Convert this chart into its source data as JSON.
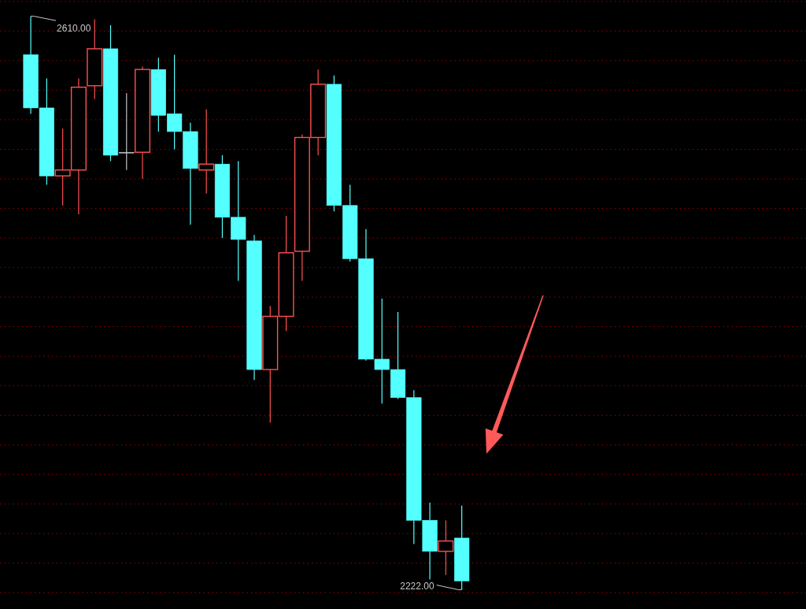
{
  "chart_data": {
    "type": "candlestick",
    "categories": [
      null,
      null,
      null,
      null,
      null,
      null,
      null,
      null,
      null,
      null,
      null,
      null,
      null,
      null,
      null,
      null,
      null,
      null,
      null,
      null,
      null,
      null,
      null,
      null,
      null,
      null,
      null,
      null
    ],
    "ohlc": [
      [
        2584,
        2610,
        2544,
        2548
      ],
      [
        2548,
        2568,
        2496,
        2502
      ],
      [
        2502,
        2534,
        2482,
        2506
      ],
      [
        2506,
        2568,
        2476,
        2562
      ],
      [
        2563,
        2608,
        2554,
        2588
      ],
      [
        2588,
        2604,
        2512,
        2516
      ],
      [
        2518,
        2558,
        2506,
        2518
      ],
      [
        2518,
        2576,
        2500,
        2574
      ],
      [
        2574,
        2582,
        2532,
        2543
      ],
      [
        2544,
        2584,
        2520,
        2532
      ],
      [
        2532,
        2538,
        2469,
        2507
      ],
      [
        2506,
        2547,
        2490,
        2510
      ],
      [
        2510,
        2516,
        2460,
        2474
      ],
      [
        2474,
        2512,
        2431,
        2459
      ],
      [
        2458,
        2462,
        2364,
        2371
      ],
      [
        2371,
        2414,
        2335,
        2407
      ],
      [
        2407,
        2475,
        2397,
        2450
      ],
      [
        2451,
        2530,
        2431,
        2528
      ],
      [
        2528,
        2574,
        2516,
        2564
      ],
      [
        2564,
        2570,
        2478,
        2482
      ],
      [
        2482,
        2496,
        2444,
        2446
      ],
      [
        2446,
        2466,
        2377,
        2378
      ],
      [
        2378,
        2419,
        2348,
        2371
      ],
      [
        2371,
        2410,
        2351,
        2352
      ],
      [
        2352,
        2357,
        2253,
        2269
      ],
      [
        2269,
        2281,
        2229,
        2248
      ],
      [
        2248,
        2269,
        2232,
        2255
      ],
      [
        2257,
        2279,
        2222,
        2228
      ]
    ],
    "colors": [
      "#54ffff",
      "#54ffff",
      "#ff5050",
      "#ff5050",
      "#ff5050",
      "#54ffff",
      "#c0c0c0",
      "#ff5050",
      "#54ffff",
      "#54ffff",
      "#54ffff",
      "#ff5050",
      "#54ffff",
      "#54ffff",
      "#54ffff",
      "#ff5050",
      "#ff5050",
      "#ff5050",
      "#ff5050",
      "#54ffff",
      "#54ffff",
      "#54ffff",
      "#54ffff",
      "#54ffff",
      "#54ffff",
      "#54ffff",
      "#ff5050",
      "#54ffff"
    ],
    "ylim": [
      2209,
      2621
    ],
    "yticks": [
      2620,
      2600,
      2580,
      2560,
      2540,
      2520,
      2500,
      2480,
      2460,
      2440,
      2420,
      2400,
      2380,
      2360,
      2340,
      2320,
      2300,
      2280,
      2260,
      2240,
      2220
    ],
    "grid": "y",
    "tick_labels": false,
    "annotations": [
      "2610.00",
      "2222.00"
    ]
  }
}
